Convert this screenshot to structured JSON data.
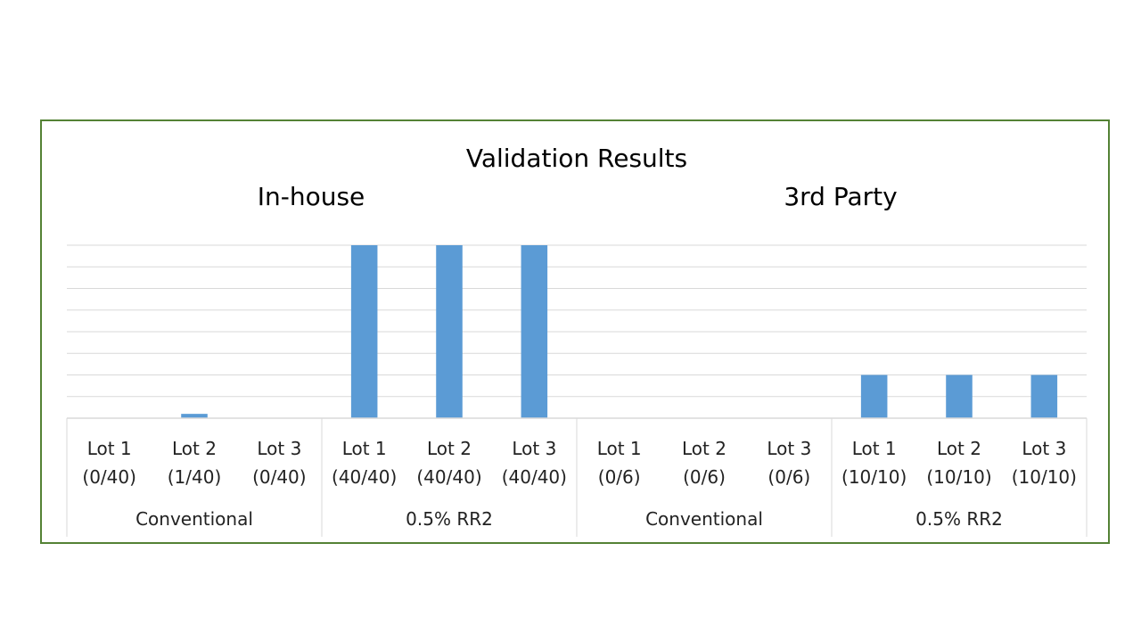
{
  "chart_data": {
    "type": "bar",
    "title": "Validation Results",
    "panels": [
      {
        "subtitle": "In-house",
        "groups": [
          {
            "name": "Conventional",
            "categories": [
              {
                "label": "Lot 1",
                "detail": "(0/40)",
                "value": 0
              },
              {
                "label": "Lot 2",
                "detail": "(1/40)",
                "value": 1
              },
              {
                "label": "Lot 3",
                "detail": "(0/40)",
                "value": 0
              }
            ]
          },
          {
            "name": "0.5% RR2",
            "categories": [
              {
                "label": "Lot 1",
                "detail": "(40/40)",
                "value": 40
              },
              {
                "label": "Lot 2",
                "detail": "(40/40)",
                "value": 40
              },
              {
                "label": "Lot 3",
                "detail": "(40/40)",
                "value": 40
              }
            ]
          }
        ]
      },
      {
        "subtitle": "3rd Party",
        "groups": [
          {
            "name": "Conventional",
            "categories": [
              {
                "label": "Lot 1",
                "detail": "(0/6)",
                "value": 0
              },
              {
                "label": "Lot 2",
                "detail": "(0/6)",
                "value": 0
              },
              {
                "label": "Lot 3",
                "detail": "(0/6)",
                "value": 0
              }
            ]
          },
          {
            "name": "0.5% RR2",
            "categories": [
              {
                "label": "Lot 1",
                "detail": "(10/10)",
                "value": 10
              },
              {
                "label": "Lot 2",
                "detail": "(10/10)",
                "value": 10
              },
              {
                "label": "Lot 3",
                "detail": "(10/10)",
                "value": 10
              }
            ]
          }
        ]
      }
    ],
    "ylim": [
      0,
      40
    ],
    "gridlines": 8,
    "bar_color": "#5B9BD5",
    "grid_color": "#D9D9D9",
    "frame_color": "#548235"
  }
}
